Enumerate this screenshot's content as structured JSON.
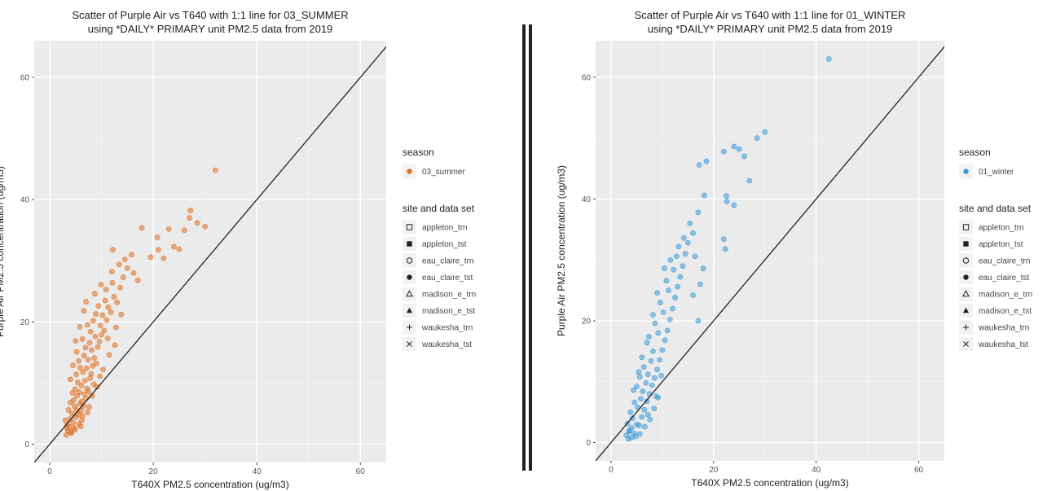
{
  "chart_data": [
    {
      "type": "scatter",
      "title": "Scatter of Purple Air vs T640 with 1:1 line for 03_SUMMER",
      "subtitle": "using *DAILY* PRIMARY unit PM2.5 data from 2019",
      "xlabel": "T640X PM2.5 concentration (ug/m3)",
      "ylabel": "Purple Air PM2.5 concentration (ug/m3)",
      "xlim": [
        -3,
        65
      ],
      "ylim": [
        -3,
        66
      ],
      "xticks": [
        0,
        20,
        40,
        60
      ],
      "yticks": [
        0,
        20,
        40,
        60
      ],
      "grid": true,
      "reference_line": "1:1",
      "point_color": "#e07020",
      "legend_position": "right",
      "legend_season": {
        "title": "season",
        "entries": [
          "03_summer"
        ]
      },
      "legend_site": {
        "title": "site and data set",
        "entries": [
          "appleton_trn",
          "appleton_tst",
          "eau_claire_trn",
          "eau_claire_tst",
          "madison_e_trn",
          "madison_e_tst",
          "waukesha_trn",
          "waukesha_tst"
        ]
      },
      "series": [
        {
          "name": "03_summer",
          "points": [
            [
              3.2,
              1.5
            ],
            [
              3.5,
              2.2
            ],
            [
              3.8,
              2.8
            ],
            [
              4.1,
              2.0
            ],
            [
              3.4,
              3.2
            ],
            [
              4.5,
              3.5
            ],
            [
              3.9,
              4.1
            ],
            [
              4.7,
              2.6
            ],
            [
              5.0,
              4.4
            ],
            [
              4.3,
              5.0
            ],
            [
              5.2,
              5.6
            ],
            [
              4.8,
              6.2
            ],
            [
              5.5,
              4.8
            ],
            [
              5.8,
              6.6
            ],
            [
              4.6,
              7.2
            ],
            [
              6.0,
              5.4
            ],
            [
              5.3,
              7.9
            ],
            [
              6.2,
              7.0
            ],
            [
              5.7,
              8.5
            ],
            [
              6.5,
              6.2
            ],
            [
              4.9,
              9.0
            ],
            [
              6.7,
              8.2
            ],
            [
              5.4,
              10.1
            ],
            [
              7.0,
              7.5
            ],
            [
              6.1,
              9.6
            ],
            [
              5.1,
              11.4
            ],
            [
              6.8,
              10.4
            ],
            [
              7.2,
              9.1
            ],
            [
              5.9,
              12.5
            ],
            [
              7.5,
              8.6
            ],
            [
              6.4,
              11.8
            ],
            [
              7.8,
              10.8
            ],
            [
              5.6,
              13.6
            ],
            [
              7.1,
              12.4
            ],
            [
              8.0,
              11.5
            ],
            [
              6.6,
              14.5
            ],
            [
              8.3,
              12.8
            ],
            [
              7.4,
              13.8
            ],
            [
              5.2,
              15.1
            ],
            [
              8.6,
              14.1
            ],
            [
              6.9,
              15.8
            ],
            [
              7.7,
              16.6
            ],
            [
              9.0,
              13.2
            ],
            [
              8.1,
              15.4
            ],
            [
              6.3,
              17.2
            ],
            [
              9.3,
              15.9
            ],
            [
              7.9,
              18.4
            ],
            [
              8.8,
              17.6
            ],
            [
              9.6,
              16.8
            ],
            [
              7.3,
              19.5
            ],
            [
              10.0,
              17.9
            ],
            [
              8.4,
              20.2
            ],
            [
              9.8,
              19.4
            ],
            [
              10.5,
              18.6
            ],
            [
              8.9,
              21.3
            ],
            [
              10.2,
              21.1
            ],
            [
              11.0,
              20.3
            ],
            [
              9.4,
              22.6
            ],
            [
              11.3,
              22.4
            ],
            [
              10.7,
              23.5
            ],
            [
              11.8,
              21.6
            ],
            [
              12.4,
              24.1
            ],
            [
              10.9,
              25.3
            ],
            [
              13.0,
              23.2
            ],
            [
              12.1,
              26.4
            ],
            [
              13.6,
              25.6
            ],
            [
              12.0,
              28.2
            ],
            [
              14.2,
              27.3
            ],
            [
              13.4,
              29.4
            ],
            [
              15.0,
              28.8
            ],
            [
              12.2,
              31.8
            ],
            [
              14.5,
              30.2
            ],
            [
              16.2,
              28.0
            ],
            [
              17.0,
              26.8
            ],
            [
              15.8,
              31.0
            ],
            [
              17.8,
              35.4
            ],
            [
              19.5,
              30.6
            ],
            [
              21.0,
              31.8
            ],
            [
              20.8,
              33.8
            ],
            [
              22.0,
              30.4
            ],
            [
              23.0,
              35.2
            ],
            [
              24.0,
              32.3
            ],
            [
              25.0,
              31.9
            ],
            [
              26.0,
              35.0
            ],
            [
              27.0,
              37.0
            ],
            [
              27.2,
              38.2
            ],
            [
              28.5,
              36.2
            ],
            [
              30.0,
              35.6
            ],
            [
              32.0,
              44.8
            ],
            [
              3.0,
              3.9
            ],
            [
              3.6,
              5.6
            ],
            [
              4.0,
              6.8
            ],
            [
              4.4,
              8.4
            ],
            [
              3.3,
              2.7
            ],
            [
              4.2,
              1.8
            ],
            [
              5.6,
              3.3
            ],
            [
              6.3,
              4.6
            ],
            [
              7.6,
              6.1
            ],
            [
              8.2,
              7.9
            ],
            [
              9.1,
              9.4
            ],
            [
              10.3,
              12.2
            ],
            [
              11.5,
              14.6
            ],
            [
              12.6,
              16.2
            ],
            [
              9.7,
              11.1
            ],
            [
              8.5,
              9.8
            ],
            [
              6.0,
              2.9
            ],
            [
              4.0,
              10.6
            ],
            [
              4.5,
              12.9
            ],
            [
              5.0,
              16.9
            ],
            [
              5.8,
              19.2
            ],
            [
              6.6,
              21.8
            ],
            [
              7.0,
              23.3
            ],
            [
              8.7,
              24.6
            ],
            [
              9.9,
              26.1
            ],
            [
              11.2,
              17.3
            ],
            [
              12.8,
              19.1
            ],
            [
              13.8,
              21.2
            ],
            [
              6.2,
              3.9
            ],
            [
              7.3,
              5.2
            ],
            [
              4.9,
              2.4
            ]
          ]
        }
      ]
    },
    {
      "type": "scatter",
      "title": "Scatter of Purple Air vs T640 with 1:1 line for 01_WINTER",
      "subtitle": "using *DAILY* PRIMARY unit PM2.5 data from 2019",
      "xlabel": "T640X PM2.5 concentration (ug/m3)",
      "ylabel": "Purple Air PM2.5 concentration (ug/m3)",
      "xlim": [
        -3,
        65
      ],
      "ylim": [
        -3,
        66
      ],
      "xticks": [
        0,
        20,
        40,
        60
      ],
      "yticks": [
        0,
        20,
        40,
        60
      ],
      "grid": true,
      "reference_line": "1:1",
      "point_color": "#3a9ad9",
      "legend_position": "right",
      "legend_season": {
        "title": "season",
        "entries": [
          "01_winter"
        ]
      },
      "legend_site": {
        "title": "site and data set",
        "entries": [
          "appleton_trn",
          "appleton_tst",
          "eau_claire_trn",
          "eau_claire_tst",
          "madison_e_trn",
          "madison_e_tst",
          "waukesha_trn",
          "waukesha_tst"
        ]
      },
      "series": [
        {
          "name": "01_winter",
          "points": [
            [
              3.0,
              1.2
            ],
            [
              3.5,
              1.8
            ],
            [
              4.0,
              2.4
            ],
            [
              3.2,
              3.1
            ],
            [
              4.5,
              1.5
            ],
            [
              5.0,
              3.0
            ],
            [
              4.2,
              4.0
            ],
            [
              5.5,
              2.8
            ],
            [
              3.8,
              5.0
            ],
            [
              6.0,
              4.2
            ],
            [
              5.2,
              5.8
            ],
            [
              4.6,
              6.6
            ],
            [
              6.5,
              5.4
            ],
            [
              5.8,
              7.2
            ],
            [
              7.0,
              6.8
            ],
            [
              6.2,
              8.4
            ],
            [
              5.0,
              9.2
            ],
            [
              7.5,
              8.0
            ],
            [
              6.8,
              9.8
            ],
            [
              8.0,
              9.4
            ],
            [
              5.6,
              10.8
            ],
            [
              7.2,
              11.2
            ],
            [
              8.5,
              10.6
            ],
            [
              6.4,
              12.4
            ],
            [
              9.0,
              12.0
            ],
            [
              7.8,
              13.4
            ],
            [
              9.5,
              13.6
            ],
            [
              8.2,
              15.0
            ],
            [
              10.0,
              15.2
            ],
            [
              7.0,
              16.4
            ],
            [
              10.5,
              16.8
            ],
            [
              9.2,
              18.0
            ],
            [
              11.0,
              18.4
            ],
            [
              8.6,
              19.6
            ],
            [
              11.5,
              20.2
            ],
            [
              10.2,
              21.4
            ],
            [
              12.0,
              22.0
            ],
            [
              9.6,
              23.0
            ],
            [
              12.5,
              23.8
            ],
            [
              11.2,
              25.0
            ],
            [
              13.0,
              25.6
            ],
            [
              10.8,
              26.6
            ],
            [
              13.5,
              27.2
            ],
            [
              12.2,
              28.4
            ],
            [
              14.0,
              29.0
            ],
            [
              11.6,
              30.0
            ],
            [
              14.5,
              31.0
            ],
            [
              13.2,
              32.2
            ],
            [
              15.0,
              32.8
            ],
            [
              16.0,
              34.4
            ],
            [
              15.4,
              36.0
            ],
            [
              17.0,
              37.8
            ],
            [
              16.4,
              30.6
            ],
            [
              18.0,
              28.6
            ],
            [
              17.4,
              26.0
            ],
            [
              16.0,
              24.2
            ],
            [
              17.0,
              20.0
            ],
            [
              18.2,
              40.6
            ],
            [
              17.2,
              45.6
            ],
            [
              18.6,
              46.2
            ],
            [
              22.0,
              47.8
            ],
            [
              24.0,
              48.6
            ],
            [
              25.0,
              48.2
            ],
            [
              26.0,
              47.0
            ],
            [
              27.0,
              43.0
            ],
            [
              28.5,
              50.0
            ],
            [
              30.0,
              51.0
            ],
            [
              22.5,
              40.5
            ],
            [
              22.0,
              33.4
            ],
            [
              22.6,
              39.6
            ],
            [
              22.3,
              31.8
            ],
            [
              24.0,
              39.0
            ],
            [
              42.5,
              63.0
            ],
            [
              3.6,
              2.0
            ],
            [
              4.8,
              1.0
            ],
            [
              6.6,
              2.6
            ],
            [
              7.6,
              3.8
            ],
            [
              8.4,
              5.6
            ],
            [
              9.2,
              7.4
            ],
            [
              4.4,
              8.6
            ],
            [
              5.4,
              11.6
            ],
            [
              6.0,
              14.0
            ],
            [
              7.4,
              17.4
            ],
            [
              8.2,
              21.0
            ],
            [
              9.0,
              24.6
            ],
            [
              10.4,
              28.6
            ],
            [
              12.8,
              30.6
            ],
            [
              14.2,
              33.6
            ],
            [
              4.0,
              0.8
            ],
            [
              5.6,
              1.4
            ],
            [
              7.2,
              4.6
            ],
            [
              8.8,
              7.6
            ],
            [
              9.8,
              11.0
            ],
            [
              3.4,
              0.6
            ]
          ]
        }
      ]
    }
  ]
}
